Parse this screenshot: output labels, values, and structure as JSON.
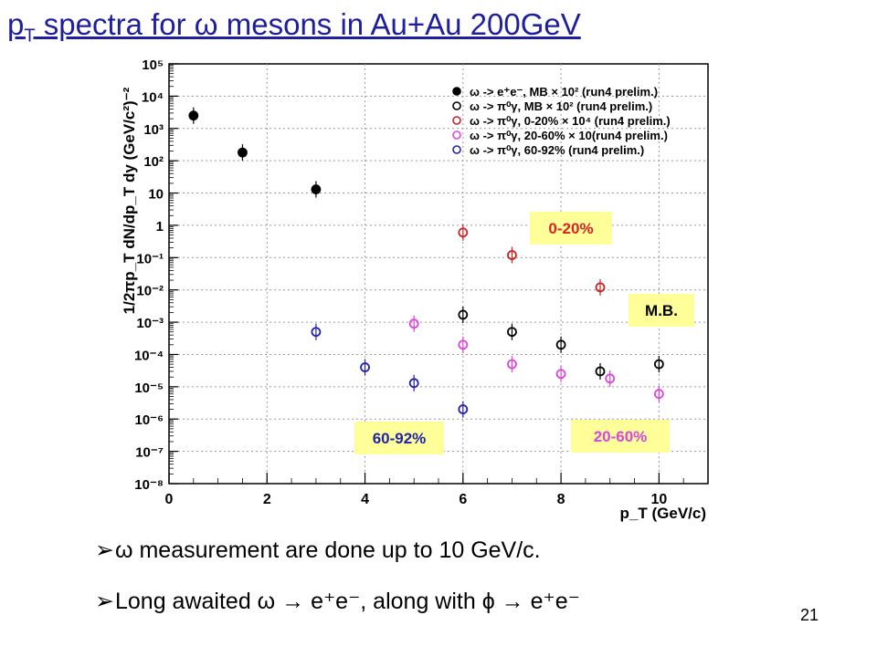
{
  "slide": {
    "title": {
      "p": "p",
      "sub": "T",
      "rest": " spectra for ω mesons in Au+Au 200GeV"
    },
    "bullets": [
      {
        "arrow": "➢",
        "text": "ω measurement are done up to 10 GeV/c."
      },
      {
        "arrow": "➢",
        "text": "Long awaited ω → e⁺e⁻, along with ϕ → e⁺e⁻"
      }
    ],
    "page_number": "21"
  },
  "chart_data": {
    "type": "scatter",
    "title": "",
    "xlabel": "p_T (GeV/c)",
    "ylabel": "1/2πp_T dN/dp_T dy (GeV/c²)⁻²",
    "xlim": [
      0,
      11
    ],
    "ylim": [
      1e-08,
      100000.0
    ],
    "yscale": "log",
    "grid": true,
    "legend_placement": "top-right",
    "xticks": [
      "0",
      "2",
      "4",
      "6",
      "8",
      "10"
    ],
    "yticks": [
      "10⁻⁸",
      "10⁻⁷",
      "10⁻⁶",
      "10⁻⁵",
      "10⁻⁴",
      "10⁻³",
      "10⁻²",
      "10⁻¹",
      "1",
      "10",
      "10²",
      "10³",
      "10⁴",
      "10⁵"
    ],
    "series": [
      {
        "name": "ω -> e⁺e⁻, MB × 10² (run4 prelim.)",
        "color": "#000000",
        "marker": "filled",
        "x": [
          0.5,
          1.5,
          3.0
        ],
        "y": [
          2500,
          180,
          13
        ]
      },
      {
        "name": "ω -> π⁰γ, MB × 10² (run4 prelim.)",
        "color": "#000000",
        "marker": "open",
        "x": [
          6.0,
          7.0,
          8.0,
          8.8,
          10.0
        ],
        "y": [
          0.0017,
          0.0005,
          0.0002,
          3e-05,
          5e-05
        ]
      },
      {
        "name": "ω -> π⁰γ, 0-20% × 10⁴ (run4 prelim.)",
        "color": "#cc2222",
        "marker": "open",
        "x": [
          6.0,
          7.0,
          8.8
        ],
        "y": [
          0.6,
          0.12,
          0.012
        ]
      },
      {
        "name": "ω -> π⁰γ, 20-60% × 10(run4 prelim.)",
        "color": "#dd44dd",
        "marker": "open",
        "x": [
          5.0,
          6.0,
          7.0,
          8.0,
          9.0,
          10.0
        ],
        "y": [
          0.0009,
          0.0002,
          5e-05,
          2.5e-05,
          1.8e-05,
          6e-06
        ]
      },
      {
        "name": "ω -> π⁰γ, 60-92% (run4 prelim.)",
        "color": "#2222aa",
        "marker": "open",
        "x": [
          3.0,
          4.0,
          5.0,
          6.0
        ],
        "y": [
          0.0005,
          4e-05,
          1.3e-05,
          2e-06
        ]
      }
    ],
    "annotations": [
      {
        "text": "0-20%",
        "color": "#dd2222",
        "bg": "#ffff99"
      },
      {
        "text": "M.B.",
        "color": "#000000",
        "bg": "#ffff99"
      },
      {
        "text": "60-92%",
        "color": "#2222aa",
        "bg": "#ffff99"
      },
      {
        "text": "20-60%",
        "color": "#dd44dd",
        "bg": "#ffff99"
      }
    ]
  }
}
